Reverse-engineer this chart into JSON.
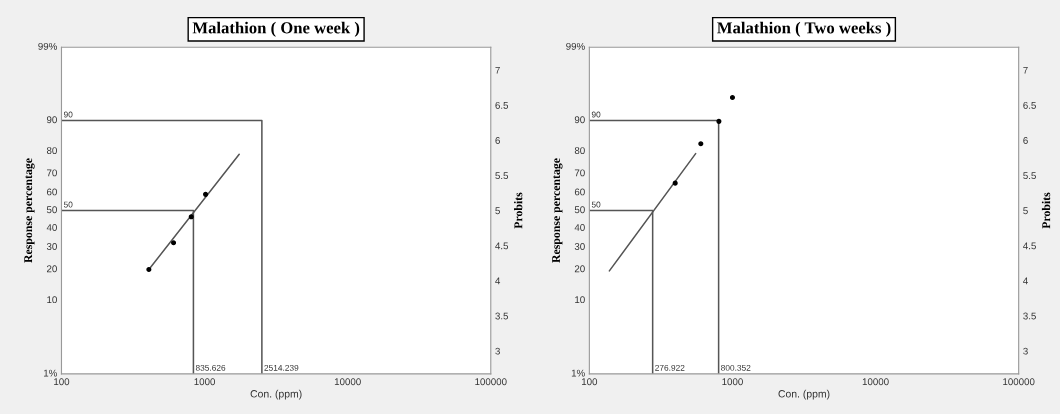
{
  "chart_data": [
    {
      "type": "line",
      "title": "Malathion ( One week )",
      "xlabel": "Con. (ppm)",
      "ylabel": "Probits",
      "y2label": "Response percentage",
      "log": "x",
      "xlim": [
        100,
        100000
      ],
      "xticks": [
        100,
        1000,
        10000,
        100000
      ],
      "ylim": [
        2.674,
        7.326
      ],
      "yticks": [
        3,
        3.5,
        4,
        4.5,
        5,
        5.5,
        6,
        6.5,
        7
      ],
      "series": [
        {
          "color": "#555555",
          "x": [
            408,
            1746
          ],
          "values": [
            4.16,
            5.8
          ]
        },
        {
          "type": "scatter",
          "color": "#000000",
          "x": [
            408,
            607,
            807,
            1016
          ],
          "values": [
            4.16,
            4.54,
            4.91,
            5.23
          ]
        },
        {
          "color": "#555555",
          "x": [
            100,
            835.626,
            835.626
          ],
          "values": [
            5,
            5,
            2.674
          ]
        },
        {
          "color": "#555555",
          "x": [
            100,
            2514.239,
            2514.239
          ],
          "values": [
            6.282,
            6.282,
            2.674
          ]
        }
      ],
      "annotations": [
        "1%",
        "10",
        "20",
        "30",
        "40",
        "50",
        "60",
        "70",
        "80",
        "90",
        "99%",
        {
          "text": "50",
          "x": 100,
          "y": 5
        },
        {
          "text": "90",
          "x": 100,
          "y": 6.282
        },
        {
          "text": "835.626",
          "x": 835.626,
          "y": 2.674
        },
        {
          "text": "2514.239",
          "x": 2514.239,
          "y": 2.674
        }
      ]
    },
    {
      "type": "line",
      "title": "Malathion ( Two weeks )",
      "xlabel": "Con. (ppm)",
      "ylabel": "Probits",
      "y2label": "Response percentage",
      "log": "x",
      "xlim": [
        100,
        100000
      ],
      "xticks": [
        100,
        1000,
        10000,
        100000
      ],
      "ylim": [
        2.674,
        7.326
      ],
      "yticks": [
        3,
        3.5,
        4,
        4.5,
        5,
        5.5,
        6,
        6.5,
        7
      ],
      "series": [
        {
          "color": "#555555",
          "x": [
            138,
            553
          ],
          "values": [
            4.14,
            5.81
          ]
        },
        {
          "type": "scatter",
          "color": "#000000",
          "x": [
            398,
            601,
            804,
            1000
          ],
          "values": [
            5.39,
            5.95,
            6.27,
            6.61
          ]
        },
        {
          "color": "#555555",
          "x": [
            100,
            276.922,
            276.922
          ],
          "values": [
            5,
            5,
            2.674
          ]
        },
        {
          "color": "#555555",
          "x": [
            100,
            800.352,
            800.352
          ],
          "values": [
            6.282,
            6.282,
            2.674
          ]
        }
      ],
      "annotations": [
        "1%",
        "10",
        "20",
        "30",
        "40",
        "50",
        "60",
        "70",
        "80",
        "90",
        "99%",
        {
          "text": "50",
          "x": 100,
          "y": 5
        },
        {
          "text": "90",
          "x": 100,
          "y": 6.282
        },
        {
          "text": "276.922",
          "x": 276.922,
          "y": 2.674
        },
        {
          "text": "800.352",
          "x": 800.352,
          "y": 2.674
        }
      ]
    }
  ]
}
